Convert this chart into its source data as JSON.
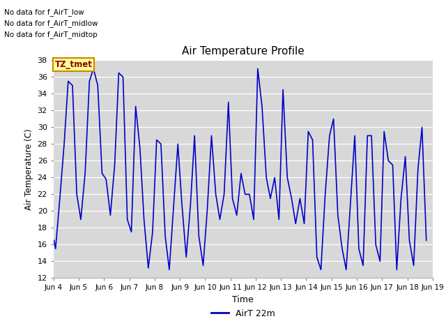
{
  "title": "Air Temperature Profile",
  "xlabel": "Time",
  "ylabel": "Air Temperature (C)",
  "legend_label": "AirT 22m",
  "ylim": [
    12,
    38
  ],
  "yticks": [
    12,
    14,
    16,
    18,
    20,
    22,
    24,
    26,
    28,
    30,
    32,
    34,
    36,
    38
  ],
  "line_color": "#0000cc",
  "bg_color": "#d8d8d8",
  "annotations": [
    "No data for f_AirT_low",
    "No data for f_AirT_midlow",
    "No data for f_AirT_midtop"
  ],
  "tz_label": "TZ_tmet",
  "x_tick_positions": [
    4,
    5,
    6,
    7,
    8,
    9,
    10,
    11,
    12,
    13,
    14,
    15,
    16,
    17,
    18,
    19
  ],
  "x_labels": [
    "Jun 4",
    "Jun 5",
    "Jun 6",
    "Jun 7",
    "Jun 8",
    "Jun 9",
    "Jun 10",
    "Jun 11",
    "Jun 12",
    "Jun 13",
    "Jun 14",
    "Jun 15",
    "Jun 16",
    "Jun 17",
    "Jun 18",
    "Jun 19"
  ],
  "data_x_days": [
    4.02,
    4.08,
    4.25,
    4.42,
    4.58,
    4.75,
    4.92,
    5.08,
    5.25,
    5.42,
    5.58,
    5.75,
    5.92,
    6.08,
    6.25,
    6.42,
    6.58,
    6.75,
    6.92,
    7.08,
    7.25,
    7.42,
    7.58,
    7.75,
    7.92,
    8.08,
    8.25,
    8.42,
    8.58,
    8.75,
    8.92,
    9.08,
    9.25,
    9.42,
    9.58,
    9.75,
    9.92,
    10.08,
    10.25,
    10.42,
    10.58,
    10.75,
    10.92,
    11.08,
    11.25,
    11.42,
    11.58,
    11.75,
    11.92,
    12.08,
    12.25,
    12.42,
    12.58,
    12.75,
    12.92,
    13.08,
    13.25,
    13.42,
    13.58,
    13.75,
    13.92,
    14.08,
    14.25,
    14.42,
    14.58,
    14.75,
    14.92,
    15.08,
    15.25,
    15.42,
    15.58,
    15.75,
    15.92,
    16.08,
    16.25,
    16.42,
    16.58,
    16.75,
    16.92,
    17.08,
    17.25,
    17.42,
    17.58,
    17.75,
    17.92,
    18.08,
    18.25,
    18.42,
    18.58,
    18.75
  ],
  "data_y": [
    16.5,
    15.5,
    21.5,
    28.0,
    35.5,
    35.0,
    22.0,
    19.0,
    24.5,
    35.5,
    37.0,
    35.0,
    24.5,
    23.8,
    19.5,
    25.5,
    36.5,
    36.0,
    19.0,
    17.5,
    32.5,
    27.5,
    19.0,
    13.2,
    17.5,
    28.5,
    28.0,
    17.0,
    13.0,
    20.5,
    28.0,
    20.8,
    14.5,
    20.8,
    29.0,
    17.0,
    13.5,
    20.0,
    29.0,
    22.0,
    19.0,
    22.0,
    33.0,
    21.5,
    19.5,
    24.5,
    22.0,
    22.0,
    19.0,
    37.0,
    32.5,
    24.0,
    21.5,
    24.0,
    19.0,
    34.5,
    24.0,
    21.5,
    18.5,
    21.5,
    18.5,
    29.5,
    28.5,
    14.5,
    13.0,
    22.0,
    29.0,
    31.0,
    19.5,
    15.5,
    13.0,
    21.0,
    29.0,
    15.5,
    13.5,
    29.0,
    29.0,
    16.0,
    14.0,
    29.5,
    26.0,
    25.5,
    13.0,
    21.5,
    26.5,
    16.5,
    13.5,
    25.0,
    30.0,
    16.5
  ]
}
